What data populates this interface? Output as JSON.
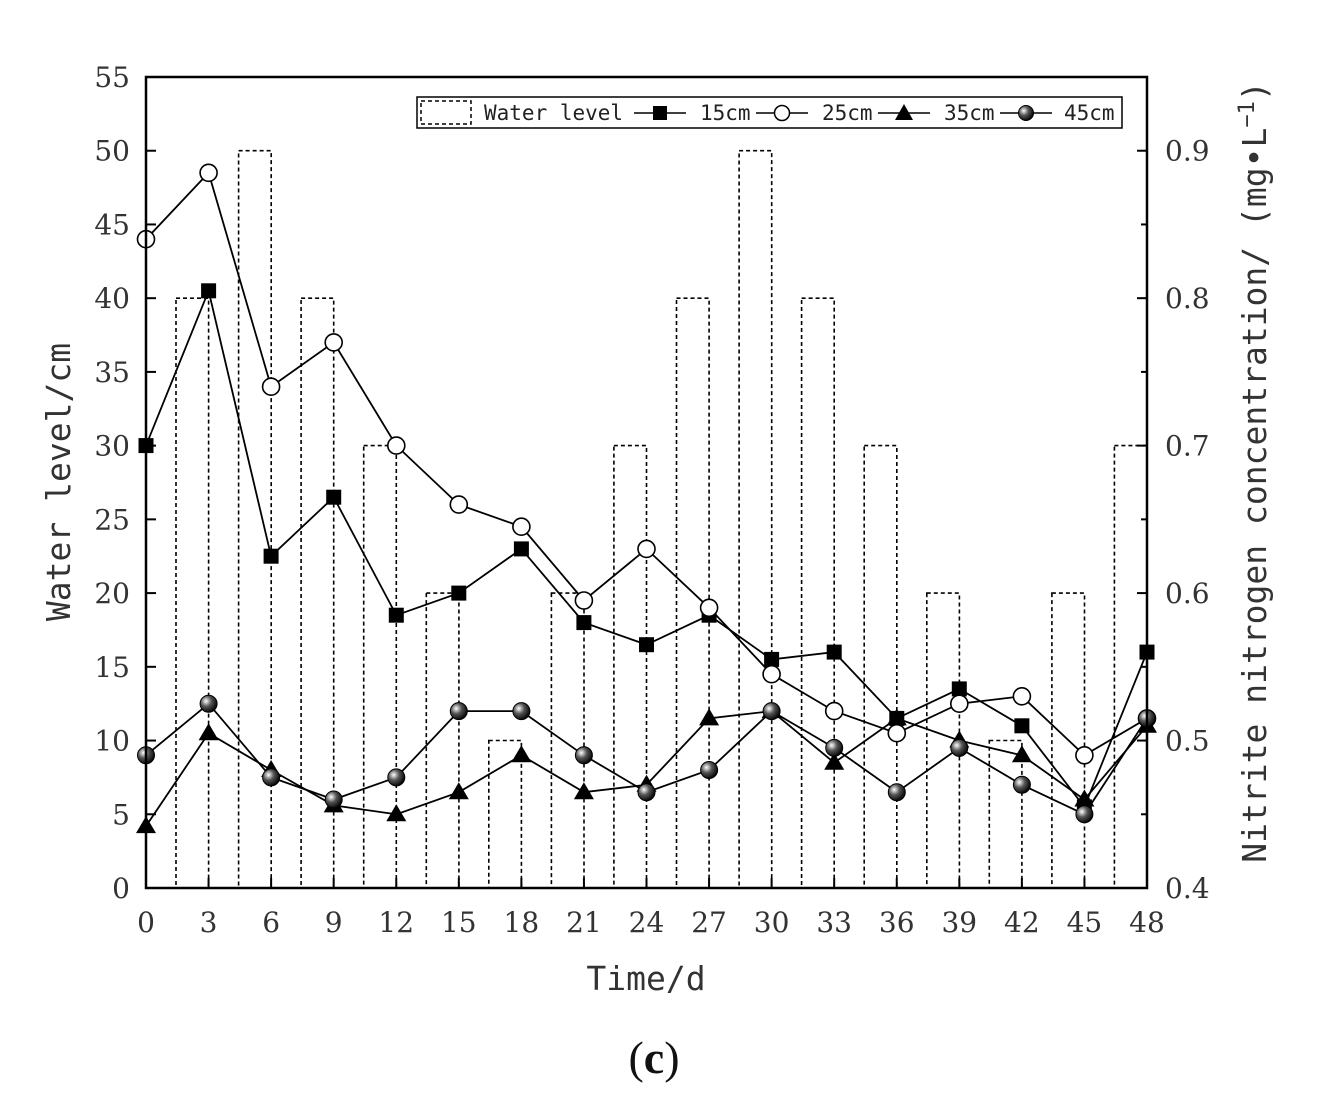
{
  "chart_data": {
    "type": "bar+line",
    "title": "",
    "panel_label": "(c)",
    "panel_letter": "c",
    "xlabel": "Time/d",
    "ylabel_left": "Water level/cm",
    "ylabel_right": "Nitrite nitrogen concentration/ (mg•L",
    "ylabel_right_sup": "−1",
    "ylabel_right_tail": ")",
    "xlim": [
      0,
      48
    ],
    "ylim_left": [
      0,
      55
    ],
    "ylim_right": [
      0.4,
      0.95
    ],
    "x_ticks": [
      0,
      3,
      6,
      9,
      12,
      15,
      18,
      21,
      24,
      27,
      30,
      33,
      36,
      39,
      42,
      45,
      48
    ],
    "y_left_ticks": [
      0,
      5,
      10,
      15,
      20,
      25,
      30,
      35,
      40,
      45,
      50,
      55
    ],
    "y_right_ticks": [
      "0.4",
      "0.5",
      "0.6",
      "0.7",
      "0.8",
      "0.9"
    ],
    "y_right_tick_values": [
      0.4,
      0.5,
      0.6,
      0.7,
      0.8,
      0.9
    ],
    "x": [
      0,
      3,
      6,
      9,
      12,
      15,
      18,
      21,
      24,
      27,
      30,
      33,
      36,
      39,
      42,
      45,
      48
    ],
    "water_level": {
      "name": "Water level",
      "axis": "left",
      "style": "dashed-bar",
      "x": [
        3,
        6,
        9,
        12,
        15,
        18,
        21,
        24,
        27,
        30,
        33,
        36,
        39,
        42,
        45,
        48
      ],
      "values": [
        40,
        50,
        40,
        30,
        20,
        10,
        20,
        30,
        40,
        50,
        40,
        30,
        20,
        10,
        20,
        30
      ]
    },
    "series": [
      {
        "name": "15cm",
        "marker": "square-filled",
        "axis": "right",
        "values": [
          0.7,
          0.805,
          0.625,
          0.665,
          0.585,
          0.6,
          0.63,
          0.58,
          0.565,
          0.585,
          0.555,
          0.56,
          0.515,
          0.535,
          0.51,
          0.455,
          0.56
        ]
      },
      {
        "name": "25cm",
        "marker": "circle-open",
        "axis": "right",
        "values": [
          0.84,
          0.885,
          0.74,
          0.77,
          0.7,
          0.66,
          0.645,
          0.595,
          0.63,
          0.59,
          0.545,
          0.52,
          0.505,
          0.525,
          0.53,
          0.49,
          0.515
        ]
      },
      {
        "name": "35cm",
        "marker": "triangle-filled",
        "axis": "right",
        "values": [
          0.442,
          0.505,
          0.48,
          0.456,
          0.45,
          0.465,
          0.49,
          0.465,
          0.47,
          0.515,
          0.52,
          0.485,
          0.515,
          0.5,
          0.49,
          0.46,
          0.51
        ]
      },
      {
        "name": "45cm",
        "marker": "circle-shaded",
        "axis": "right",
        "values": [
          0.49,
          0.525,
          0.475,
          0.46,
          0.475,
          0.52,
          0.52,
          0.49,
          0.465,
          0.48,
          0.52,
          0.495,
          0.465,
          0.495,
          0.47,
          0.45,
          0.515
        ]
      }
    ],
    "legend_placement": "top-right",
    "grid": false,
    "colors": {
      "line": "#000000",
      "axis": "#000000",
      "text": "#333333"
    }
  }
}
